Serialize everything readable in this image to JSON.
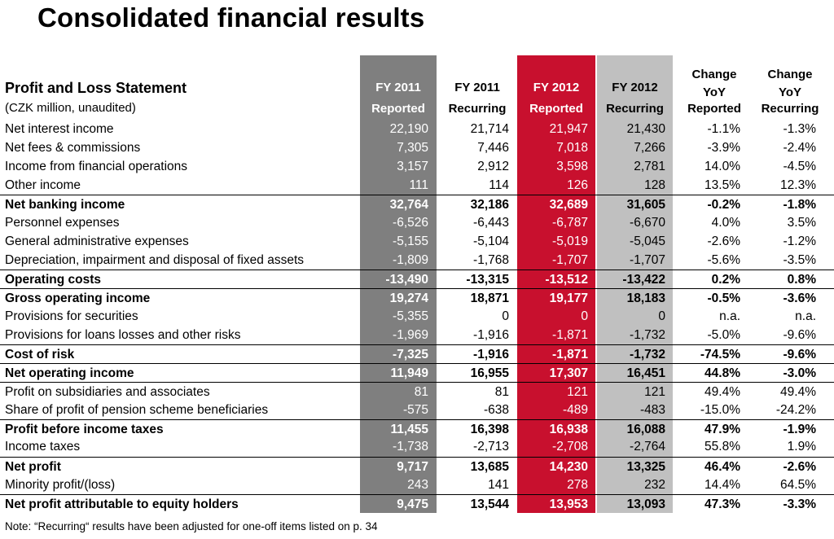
{
  "title": "Consolidated financial results",
  "statement_title": "Profit and Loss Statement",
  "unit_note": "(CZK million, unaudited)",
  "columns": [
    {
      "line1": "FY 2011",
      "line2": "Reported"
    },
    {
      "line1": "FY 2011",
      "line2": "Recurring"
    },
    {
      "line1": "FY 2012",
      "line2": "Reported"
    },
    {
      "line1": "FY 2012",
      "line2": "Recurring"
    },
    {
      "line0": "Change",
      "line1": "YoY",
      "line2": "Reported"
    },
    {
      "line0": "Change",
      "line1": "YoY",
      "line2": "Recurring"
    }
  ],
  "rows": [
    {
      "label": "Net interest income",
      "bold": false,
      "values": [
        "22,190",
        "21,714",
        "21,947",
        "21,430",
        "-1.1%",
        "-1.3%"
      ]
    },
    {
      "label": "Net fees & commissions",
      "bold": false,
      "values": [
        "7,305",
        "7,446",
        "7,018",
        "7,266",
        "-3.9%",
        "-2.4%"
      ]
    },
    {
      "label": "Income from financial operations",
      "bold": false,
      "values": [
        "3,157",
        "2,912",
        "3,598",
        "2,781",
        "14.0%",
        "-4.5%"
      ]
    },
    {
      "label": "Other income",
      "bold": false,
      "values": [
        "111",
        "114",
        "126",
        "128",
        "13.5%",
        "12.3%"
      ]
    },
    {
      "label": "Net banking income",
      "bold": true,
      "values": [
        "32,764",
        "32,186",
        "32,689",
        "31,605",
        "-0.2%",
        "-1.8%"
      ]
    },
    {
      "label": "Personnel expenses",
      "bold": false,
      "values": [
        "-6,526",
        "-6,443",
        "-6,787",
        "-6,670",
        "4.0%",
        "3.5%"
      ]
    },
    {
      "label": "General administrative expenses",
      "bold": false,
      "values": [
        "-5,155",
        "-5,104",
        "-5,019",
        "-5,045",
        "-2.6%",
        "-1.2%"
      ]
    },
    {
      "label": "Depreciation, impairment and disposal of fixed assets",
      "bold": false,
      "values": [
        "-1,809",
        "-1,768",
        "-1,707",
        "-1,707",
        "-5.6%",
        "-3.5%"
      ]
    },
    {
      "label": "Operating costs",
      "bold": true,
      "values": [
        "-13,490",
        "-13,315",
        "-13,512",
        "-13,422",
        "0.2%",
        "0.8%"
      ]
    },
    {
      "label": "Gross operating income",
      "bold": true,
      "values": [
        "19,274",
        "18,871",
        "19,177",
        "18,183",
        "-0.5%",
        "-3.6%"
      ]
    },
    {
      "label": "Provisions for securities",
      "bold": false,
      "values": [
        "-5,355",
        "0",
        "0",
        "0",
        "n.a.",
        "n.a."
      ]
    },
    {
      "label": "Provisions for loans losses and other risks",
      "bold": false,
      "values": [
        "-1,969",
        "-1,916",
        "-1,871",
        "-1,732",
        "-5.0%",
        "-9.6%"
      ]
    },
    {
      "label": "Cost of risk",
      "bold": true,
      "values": [
        "-7,325",
        "-1,916",
        "-1,871",
        "-1,732",
        "-74.5%",
        "-9.6%"
      ]
    },
    {
      "label": "Net operating income",
      "bold": true,
      "values": [
        "11,949",
        "16,955",
        "17,307",
        "16,451",
        "44.8%",
        "-3.0%"
      ]
    },
    {
      "label": "Profit on subsidiaries and associates",
      "bold": false,
      "values": [
        "81",
        "81",
        "121",
        "121",
        "49.4%",
        "49.4%"
      ]
    },
    {
      "label": "Share of profit of pension scheme beneficiaries",
      "bold": false,
      "values": [
        "-575",
        "-638",
        "-489",
        "-483",
        "-15.0%",
        "-24.2%"
      ]
    },
    {
      "label": "Profit before income taxes",
      "bold": true,
      "values": [
        "11,455",
        "16,398",
        "16,938",
        "16,088",
        "47.9%",
        "-1.9%"
      ]
    },
    {
      "label": "Income taxes",
      "bold": false,
      "values": [
        "-1,738",
        "-2,713",
        "-2,708",
        "-2,764",
        "55.8%",
        "1.9%"
      ]
    },
    {
      "label": "Net profit",
      "bold": true,
      "values": [
        "9,717",
        "13,685",
        "14,230",
        "13,325",
        "46.4%",
        "-2.6%"
      ]
    },
    {
      "label": "Minority profit/(loss)",
      "bold": false,
      "values": [
        "243",
        "141",
        "278",
        "232",
        "14.4%",
        "64.5%"
      ]
    },
    {
      "label": "Net profit attributable to equity holders",
      "bold": true,
      "values": [
        "9,475",
        "13,544",
        "13,953",
        "13,093",
        "47.3%",
        "-3.3%"
      ]
    }
  ],
  "note": "Note: “Recurring“ results have been adjusted for one-off items listed on p. 34",
  "colors": {
    "fy2011_reported": "#7f7f7f",
    "fy2012_reported": "#c8102e",
    "fy2012_recurring": "#c0c0c0"
  }
}
